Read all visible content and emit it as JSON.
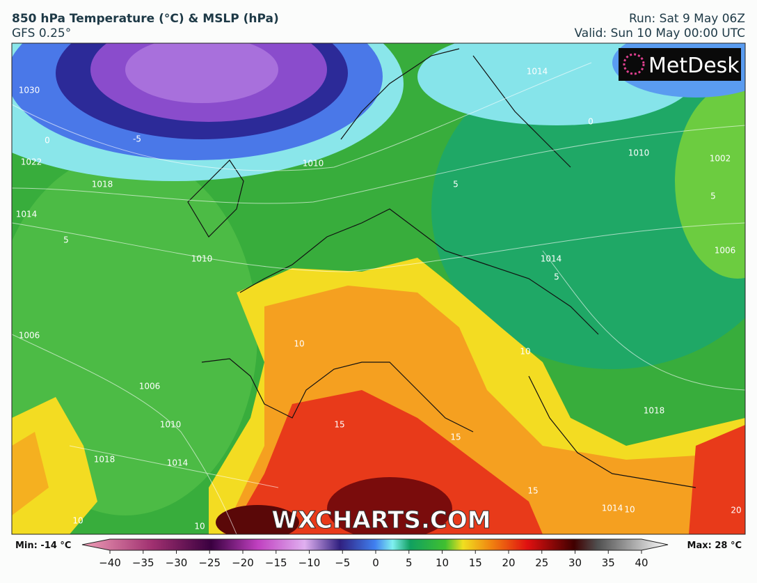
{
  "header": {
    "title": "850 hPa Temperature (°C) & MSLP (hPa)",
    "model": "GFS 0.25°",
    "run": "Run: Sat 9 May 06Z",
    "valid": "Valid: Sun 10 May 00:00 UTC"
  },
  "logo": "MetDesk",
  "watermark": "WXCHARTS.COM",
  "map": {
    "contour_labels": [
      "1030",
      "0",
      "-5",
      "1022",
      "1018",
      "1014",
      "5",
      "1010",
      "1010",
      "1014",
      "0",
      "1010",
      "1002",
      "5",
      "1006",
      "1014",
      "5",
      "1006",
      "1006",
      "1010",
      "1018",
      "1014",
      "10",
      "10",
      "15",
      "15",
      "15",
      "1018",
      "1014",
      "10",
      "10",
      "10",
      "20",
      "5"
    ]
  },
  "colorbar": {
    "min_label": "Min: -14 °C",
    "max_label": "Max: 28 °C",
    "ticks": [
      {
        "value": -40,
        "label": "−40"
      },
      {
        "value": -35,
        "label": "−35"
      },
      {
        "value": -30,
        "label": "−30"
      },
      {
        "value": -25,
        "label": "−25"
      },
      {
        "value": -20,
        "label": "−20"
      },
      {
        "value": -15,
        "label": "−15"
      },
      {
        "value": -10,
        "label": "−10"
      },
      {
        "value": -5,
        "label": "−5"
      },
      0,
      5,
      10,
      15,
      20,
      25,
      30,
      35,
      40
    ]
  }
}
